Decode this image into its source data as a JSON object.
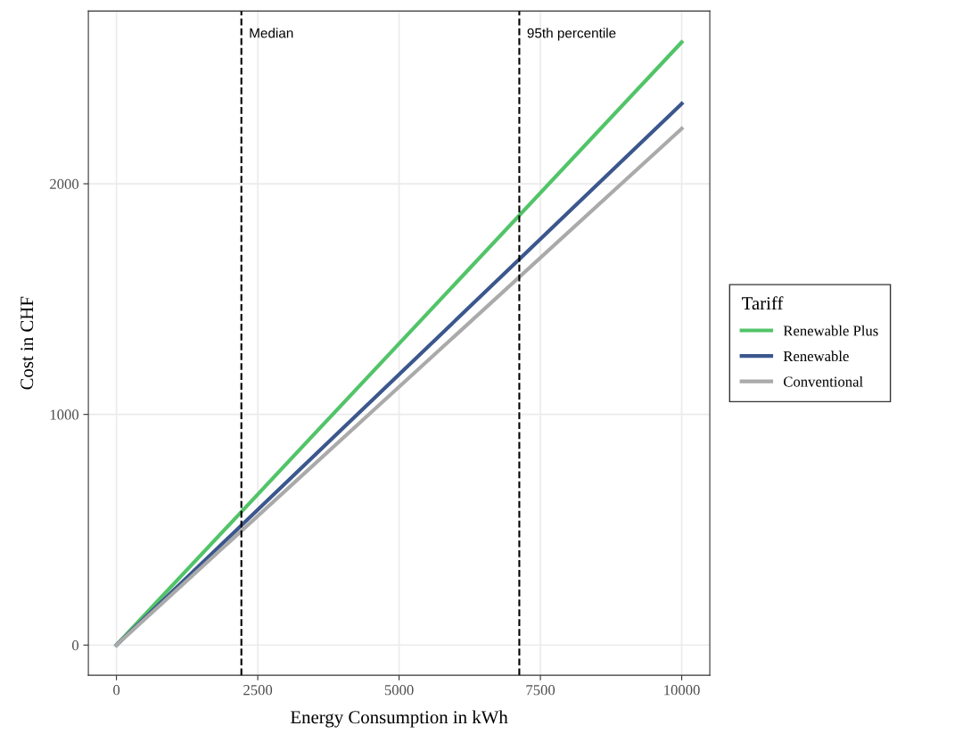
{
  "chart_data": {
    "type": "line",
    "xlabel": "Energy Consumption in kWh",
    "ylabel": "Cost in CHF",
    "legend_title": "Tariff",
    "x": [
      0,
      10000
    ],
    "series": [
      {
        "name": "Renewable Plus",
        "color": "#51c468",
        "values": [
          0,
          2614
        ]
      },
      {
        "name": "Renewable",
        "color": "#3b578d",
        "values": [
          0,
          2347
        ]
      },
      {
        "name": "Conventional",
        "color": "#aaaaaa",
        "values": [
          0,
          2239
        ]
      }
    ],
    "xlim": [
      -497,
      10497
    ],
    "ylim": [
      -131,
      2749
    ],
    "xticks": [
      0,
      2500,
      5000,
      7500,
      10000
    ],
    "yticks": [
      0,
      1000,
      2000
    ],
    "ref_lines": [
      {
        "axis": "x",
        "value": 2210,
        "label": "Median",
        "color": "#000000",
        "line_style": "dashed"
      },
      {
        "axis": "x",
        "value": 7127,
        "label": "95th percentile",
        "color": "#000000",
        "line_style": "dashed"
      }
    ],
    "grid": true,
    "legend": "right",
    "marker": "none",
    "line_style": "solid"
  }
}
